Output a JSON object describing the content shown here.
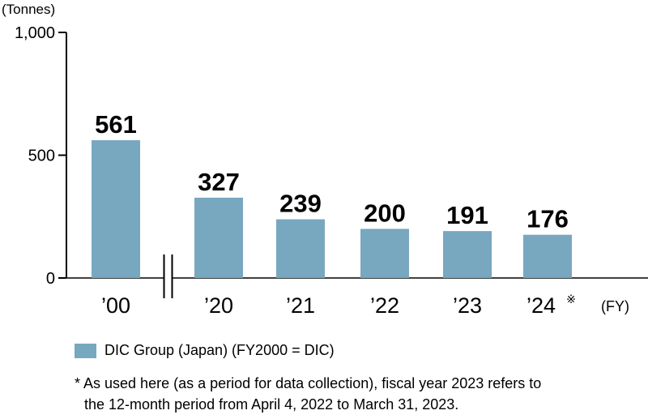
{
  "chart_data": {
    "type": "bar",
    "ylabel": "(Tonnes)",
    "xunit": "(FY)",
    "categories": [
      "’00",
      "’20",
      "’21",
      "’22",
      "’23",
      "’24"
    ],
    "category_mark": "※",
    "values": [
      561,
      327,
      239,
      200,
      191,
      176
    ],
    "ylim": [
      0,
      1000
    ],
    "yticks": [
      0,
      500,
      1000
    ],
    "ytick_labels": [
      "0",
      "500",
      "1,000"
    ],
    "axis_break_after_index": 0,
    "grid": false,
    "series": [
      {
        "name": "DIC Group (Japan) (FY2000 = DIC)",
        "values": [
          561,
          327,
          239,
          200,
          191,
          176
        ]
      }
    ],
    "legend_position": "bottom-left",
    "colors": {
      "bar": "#78a7c0",
      "axis": "#000000"
    },
    "footnote": [
      "* As used here (as a period for data collection), fiscal year 2023 refers to",
      "the 12-month period from April 4, 2022 to March 31, 2023."
    ]
  }
}
